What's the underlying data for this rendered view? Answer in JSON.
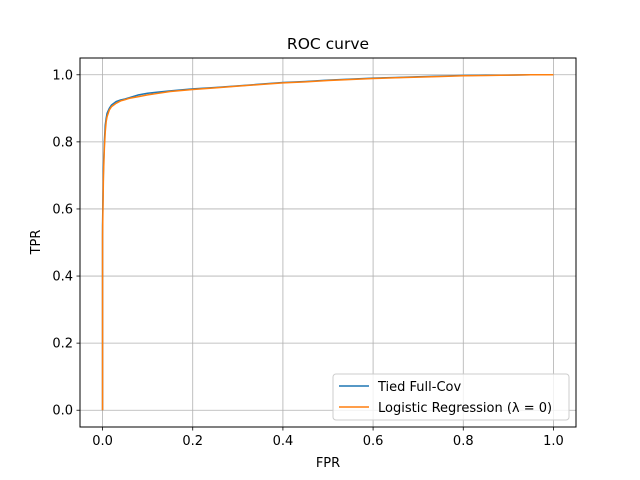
{
  "chart_data": {
    "type": "line",
    "title": "ROC curve",
    "xlabel": "FPR",
    "ylabel": "TPR",
    "xlim": [
      -0.05,
      1.05
    ],
    "ylim": [
      -0.05,
      1.05
    ],
    "xticks": [
      0.0,
      0.2,
      0.4,
      0.6,
      0.8,
      1.0
    ],
    "yticks": [
      0.0,
      0.2,
      0.4,
      0.6,
      0.8,
      1.0
    ],
    "xtick_labels": [
      "0.0",
      "0.2",
      "0.4",
      "0.6",
      "0.8",
      "1.0"
    ],
    "ytick_labels": [
      "0.0",
      "0.2",
      "0.4",
      "0.6",
      "0.8",
      "1.0"
    ],
    "grid": true,
    "legend_position": "lower-right",
    "series": [
      {
        "name": "Tied Full-Cov",
        "color": "#1f77b4",
        "x": [
          0.0,
          0.0,
          0.002,
          0.004,
          0.006,
          0.008,
          0.01,
          0.015,
          0.02,
          0.03,
          0.04,
          0.05,
          0.06,
          0.08,
          0.1,
          0.12,
          0.15,
          0.2,
          0.25,
          0.3,
          0.35,
          0.4,
          0.45,
          0.5,
          0.55,
          0.6,
          0.65,
          0.7,
          0.75,
          0.8,
          0.85,
          0.9,
          0.95,
          1.0
        ],
        "y": [
          0.0,
          0.55,
          0.72,
          0.8,
          0.85,
          0.87,
          0.885,
          0.9,
          0.91,
          0.92,
          0.925,
          0.928,
          0.932,
          0.94,
          0.945,
          0.948,
          0.952,
          0.958,
          0.962,
          0.967,
          0.972,
          0.977,
          0.98,
          0.984,
          0.987,
          0.99,
          0.992,
          0.994,
          0.996,
          0.998,
          0.999,
          0.999,
          1.0,
          1.0
        ]
      },
      {
        "name": "Logistic Regression (λ = 0)",
        "color": "#ff7f0e",
        "x": [
          0.0,
          0.0,
          0.002,
          0.004,
          0.006,
          0.008,
          0.01,
          0.015,
          0.02,
          0.03,
          0.04,
          0.05,
          0.06,
          0.08,
          0.1,
          0.12,
          0.15,
          0.2,
          0.25,
          0.3,
          0.35,
          0.4,
          0.45,
          0.5,
          0.55,
          0.6,
          0.65,
          0.7,
          0.75,
          0.8,
          0.85,
          0.9,
          0.95,
          1.0
        ],
        "y": [
          0.0,
          0.52,
          0.7,
          0.78,
          0.83,
          0.86,
          0.875,
          0.895,
          0.905,
          0.915,
          0.922,
          0.926,
          0.93,
          0.935,
          0.94,
          0.944,
          0.95,
          0.956,
          0.961,
          0.966,
          0.971,
          0.976,
          0.979,
          0.983,
          0.986,
          0.989,
          0.991,
          0.993,
          0.995,
          0.997,
          0.998,
          0.999,
          1.0,
          1.0
        ]
      }
    ]
  }
}
